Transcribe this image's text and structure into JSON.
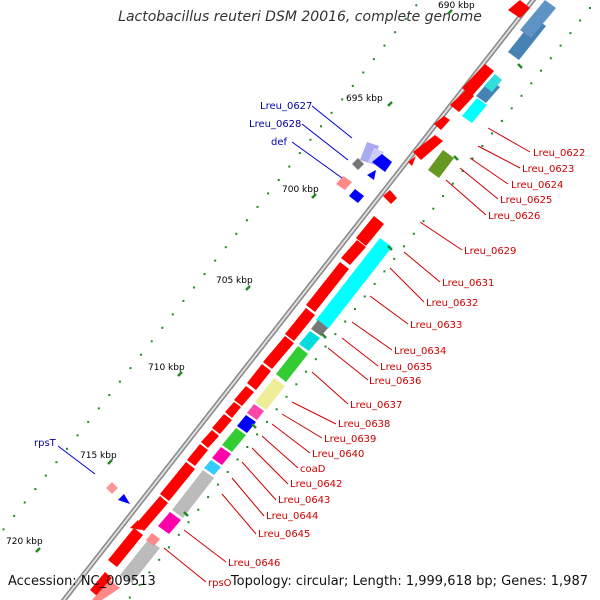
{
  "title": "Lactobacillus reuteri DSM 20016, complete genome",
  "accession": "Accession: NC_009513",
  "summary": "Topology: circular; Length: 1,999,618 bp; Genes: 1,987",
  "ticks": [
    {
      "label": "690 kbp"
    },
    {
      "label": "695 kbp"
    },
    {
      "label": "700 kbp"
    },
    {
      "label": "705 kbp"
    },
    {
      "label": "710 kbp"
    },
    {
      "label": "715 kbp"
    },
    {
      "label": "720 kbp"
    }
  ],
  "genes_left": [
    "Lreu_0627",
    "Lreu_0628",
    "def",
    "rpsT"
  ],
  "genes_right": [
    "Lreu_0622",
    "Lreu_0623",
    "Lreu_0624",
    "Lreu_0625",
    "Lreu_0626",
    "Lreu_0629",
    "Lreu_0631",
    "Lreu_0632",
    "Lreu_0633",
    "Lreu_0634",
    "Lreu_0635",
    "Lreu_0636",
    "Lreu_0637",
    "Lreu_0638",
    "Lreu_0639",
    "Lreu_0640",
    "coaD",
    "Lreu_0642",
    "Lreu_0643",
    "Lreu_0644",
    "Lreu_0645",
    "Lreu_0646",
    "rpsO"
  ],
  "colors": {
    "backbone": "#999999",
    "cds": "#ff0000",
    "label_right": "#cc0000",
    "label_left": "#0000aa",
    "dots": "#228822",
    "cyan": "#00ffff",
    "green": "#33cc33",
    "olive": "#669922",
    "khaki": "#eeee99",
    "magenta": "#ff00aa",
    "blue": "#0000ff",
    "gray": "#bbbbbb",
    "steel": "#4682b4"
  }
}
